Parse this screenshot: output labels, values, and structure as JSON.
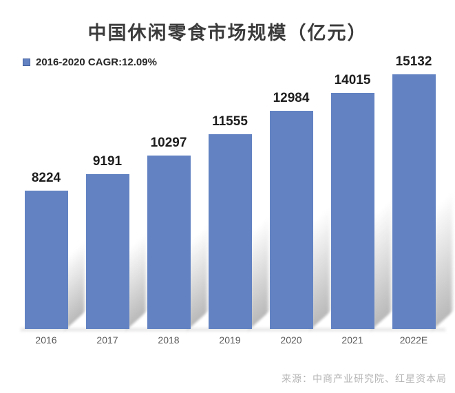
{
  "header": {
    "title": "中国休闲零食市场规模（亿元）"
  },
  "legend": {
    "label": "2016-2020 CAGR:",
    "value": "12.09%"
  },
  "chart_data": {
    "type": "bar",
    "title": "中国休闲零食市场规模（亿元）",
    "categories": [
      "2016",
      "2017",
      "2018",
      "2019",
      "2020",
      "2021",
      "2022E"
    ],
    "values": [
      8224,
      9191,
      10297,
      11555,
      12984,
      14015,
      15132
    ],
    "unit": "亿元",
    "xlabel": "",
    "ylabel": "",
    "ylim": [
      0,
      15132
    ],
    "grid": false,
    "legend_position": "top-left",
    "annotations": [
      "2016-2020 CAGR:12.09%"
    ],
    "bar_color": "#6282c2",
    "bar_border_color": "#44609e",
    "value_label_color": "#1d1d1d",
    "tick_label_color": "#5a5a5a"
  },
  "footer": {
    "source": "来源：中商产业研究院、红星资本局"
  }
}
